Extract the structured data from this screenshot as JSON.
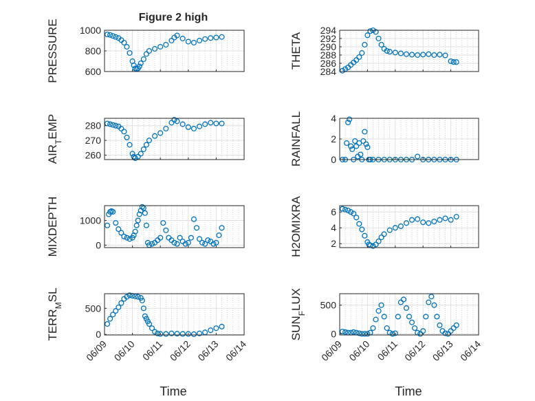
{
  "figure": {
    "title": "Figure 2 high",
    "marker_color": "#0072BD",
    "x_tick_labels": [
      "06/09",
      "06/10",
      "06/11",
      "06/12",
      "06/13",
      "06/14"
    ],
    "x_axis_label": "Time"
  },
  "chart_data": [
    {
      "type": "scatter",
      "ylabel": "PRESSURE",
      "x_range": [
        "06/09",
        "06/14"
      ],
      "ylim": [
        600,
        1000
      ],
      "yticks": [
        600,
        800,
        1000
      ],
      "ytick_labels": [
        "600",
        "800",
        "1000"
      ],
      "grid": true,
      "x": [
        0.1,
        0.2,
        0.3,
        0.4,
        0.5,
        0.6,
        0.7,
        0.8,
        0.9,
        1.0,
        1.05,
        1.1,
        1.15,
        1.2,
        1.25,
        1.3,
        1.4,
        1.5,
        1.6,
        1.8,
        2.0,
        2.2,
        2.4,
        2.5,
        2.6,
        2.8,
        3.0,
        3.2,
        3.4,
        3.6,
        3.8,
        4.0,
        4.2
      ],
      "y": [
        960,
        955,
        945,
        935,
        925,
        905,
        880,
        840,
        780,
        700,
        660,
        630,
        625,
        630,
        650,
        680,
        720,
        770,
        800,
        820,
        840,
        860,
        900,
        930,
        950,
        920,
        890,
        880,
        900,
        915,
        925,
        930,
        935
      ]
    },
    {
      "type": "scatter",
      "ylabel": "THETA",
      "x_range": [
        "06/09",
        "06/14"
      ],
      "ylim": [
        284,
        294
      ],
      "yticks": [
        284,
        286,
        288,
        290,
        292,
        294
      ],
      "ytick_labels": [
        "284",
        "286",
        "288",
        "290",
        "292",
        "294"
      ],
      "grid": true,
      "x": [
        0.1,
        0.2,
        0.3,
        0.4,
        0.5,
        0.6,
        0.7,
        0.8,
        0.9,
        1.0,
        1.1,
        1.2,
        1.3,
        1.4,
        1.5,
        1.6,
        1.7,
        1.8,
        2.0,
        2.2,
        2.4,
        2.6,
        2.8,
        3.0,
        3.2,
        3.4,
        3.6,
        3.8,
        4.0,
        4.1,
        4.2
      ],
      "y": [
        284.2,
        284.6,
        285,
        285.6,
        286.2,
        286.8,
        287.5,
        288.5,
        290.5,
        292.8,
        293.8,
        294,
        293.6,
        292,
        290.5,
        289.5,
        289,
        288.8,
        288.6,
        288.4,
        288.2,
        288.1,
        288,
        288.1,
        288.2,
        288,
        288.1,
        287.9,
        286.5,
        286.3,
        286.3
      ]
    },
    {
      "type": "scatter",
      "ylabel": "AIR_TEMP",
      "x_range": [
        "06/09",
        "06/14"
      ],
      "ylim": [
        257,
        285
      ],
      "yticks": [
        260,
        270,
        280
      ],
      "ytick_labels": [
        "260",
        "270",
        "280"
      ],
      "grid": true,
      "x": [
        0.1,
        0.2,
        0.3,
        0.4,
        0.5,
        0.6,
        0.7,
        0.8,
        0.9,
        1.0,
        1.05,
        1.1,
        1.2,
        1.3,
        1.4,
        1.5,
        1.6,
        1.8,
        2.0,
        2.2,
        2.4,
        2.5,
        2.6,
        2.8,
        3.0,
        3.2,
        3.4,
        3.6,
        3.8,
        4.0,
        4.2
      ],
      "y": [
        281.5,
        281,
        280.5,
        280,
        279.5,
        278,
        276,
        272,
        267,
        261,
        259,
        258,
        259,
        261,
        264,
        267,
        270,
        273,
        275,
        278,
        282,
        284,
        283,
        281,
        279,
        278,
        279.5,
        281,
        282,
        281.5,
        281.5
      ]
    },
    {
      "type": "scatter",
      "ylabel": "RAINFALL",
      "x_range": [
        "06/09",
        "06/14"
      ],
      "ylim": [
        0,
        4
      ],
      "yticks": [
        0,
        2,
        4
      ],
      "ytick_labels": [
        "0",
        "2",
        "4"
      ],
      "grid": true,
      "x": [
        0.1,
        0.2,
        0.25,
        0.3,
        0.35,
        0.4,
        0.45,
        0.5,
        0.55,
        0.6,
        0.65,
        0.7,
        0.75,
        0.8,
        0.85,
        0.9,
        0.95,
        1.0,
        1.05,
        1.1,
        1.2,
        1.4,
        1.6,
        1.8,
        2.0,
        2.2,
        2.4,
        2.6,
        2.8,
        3.0,
        3.2,
        3.4,
        3.6,
        3.8,
        4.0,
        4.2
      ],
      "y": [
        0,
        0,
        1.6,
        3.6,
        3.9,
        1.3,
        1,
        0,
        1.8,
        1.3,
        0.3,
        1.6,
        0.5,
        0,
        1.8,
        2.7,
        1.5,
        1.2,
        0,
        0,
        0,
        0,
        0,
        0,
        0,
        0,
        0,
        0,
        0.3,
        0,
        0,
        0,
        0,
        0,
        0,
        0
      ]
    },
    {
      "type": "scatter",
      "ylabel": "MIXDEPTH",
      "x_range": [
        "06/09",
        "06/14"
      ],
      "ylim": [
        -100,
        1600
      ],
      "yticks": [
        0,
        1000
      ],
      "ytick_labels": [
        "0",
        "1000"
      ],
      "grid": true,
      "x": [
        0.1,
        0.15,
        0.2,
        0.25,
        0.3,
        0.4,
        0.5,
        0.6,
        0.7,
        0.8,
        0.9,
        1.0,
        1.05,
        1.1,
        1.15,
        1.2,
        1.25,
        1.3,
        1.35,
        1.4,
        1.45,
        1.5,
        1.55,
        1.6,
        1.7,
        1.8,
        1.9,
        2.0,
        2.1,
        2.2,
        2.3,
        2.4,
        2.5,
        2.6,
        2.7,
        2.8,
        2.9,
        3.0,
        3.1,
        3.2,
        3.3,
        3.4,
        3.5,
        3.6,
        3.7,
        3.8,
        3.9,
        4.0,
        4.1,
        4.2
      ],
      "y": [
        800,
        1250,
        1350,
        1380,
        1350,
        900,
        650,
        500,
        350,
        300,
        250,
        300,
        400,
        550,
        800,
        1000,
        1250,
        1400,
        1550,
        1500,
        1300,
        800,
        100,
        0,
        50,
        100,
        200,
        300,
        900,
        600,
        300,
        200,
        100,
        50,
        300,
        150,
        50,
        100,
        300,
        1050,
        700,
        250,
        100,
        50,
        200,
        150,
        50,
        100,
        400,
        700
      ]
    },
    {
      "type": "scatter",
      "ylabel": "H2OMIXRA",
      "x_range": [
        "06/09",
        "06/14"
      ],
      "ylim": [
        1.5,
        6.8
      ],
      "yticks": [
        2,
        4,
        6
      ],
      "ytick_labels": [
        "2",
        "4",
        "6"
      ],
      "grid": true,
      "x": [
        0.1,
        0.2,
        0.3,
        0.4,
        0.5,
        0.6,
        0.7,
        0.8,
        0.9,
        1.0,
        1.05,
        1.1,
        1.2,
        1.3,
        1.4,
        1.5,
        1.6,
        1.8,
        2.0,
        2.2,
        2.4,
        2.6,
        2.8,
        3.0,
        3.2,
        3.4,
        3.6,
        3.8,
        4.0,
        4.2
      ],
      "y": [
        6.4,
        6.3,
        6.2,
        6.0,
        5.8,
        5.3,
        4.5,
        3.8,
        3.0,
        2.2,
        1.9,
        1.8,
        1.7,
        1.9,
        2.3,
        2.8,
        3.2,
        3.7,
        4.0,
        4.2,
        4.6,
        5.0,
        5.1,
        4.7,
        4.6,
        4.8,
        5.0,
        5.2,
        5.0,
        5.4
      ]
    },
    {
      "type": "scatter",
      "ylabel": "TERR_MSL",
      "x_range": [
        "06/09",
        "06/14"
      ],
      "ylim": [
        -10,
        780
      ],
      "yticks": [
        0,
        500
      ],
      "ytick_labels": [
        "0",
        "500"
      ],
      "grid": true,
      "x": [
        0.1,
        0.2,
        0.3,
        0.4,
        0.5,
        0.6,
        0.7,
        0.8,
        0.9,
        1.0,
        1.1,
        1.2,
        1.3,
        1.35,
        1.4,
        1.45,
        1.5,
        1.55,
        1.6,
        1.7,
        1.8,
        1.9,
        2.0,
        2.2,
        2.4,
        2.6,
        2.8,
        3.0,
        3.2,
        3.4,
        3.6,
        3.8,
        4.0,
        4.2
      ],
      "y": [
        200,
        300,
        380,
        450,
        520,
        600,
        680,
        720,
        750,
        740,
        730,
        720,
        700,
        650,
        500,
        350,
        300,
        250,
        200,
        120,
        50,
        20,
        10,
        10,
        20,
        15,
        10,
        10,
        5,
        20,
        40,
        80,
        120,
        150
      ]
    },
    {
      "type": "scatter",
      "ylabel": "SUN_FLUX",
      "x_range": [
        "06/09",
        "06/14"
      ],
      "ylim": [
        -20,
        700
      ],
      "yticks": [
        0,
        500
      ],
      "ytick_labels": [
        "0",
        "500"
      ],
      "grid": true,
      "x": [
        0.1,
        0.2,
        0.3,
        0.4,
        0.5,
        0.6,
        0.7,
        0.8,
        0.9,
        1.0,
        1.1,
        1.2,
        1.3,
        1.4,
        1.5,
        1.6,
        1.7,
        1.8,
        1.9,
        2.0,
        2.1,
        2.2,
        2.3,
        2.4,
        2.5,
        2.6,
        2.7,
        2.8,
        2.9,
        3.0,
        3.1,
        3.2,
        3.3,
        3.4,
        3.5,
        3.6,
        3.7,
        3.8,
        3.9,
        4.0,
        4.1,
        4.2
      ],
      "y": [
        40,
        30,
        20,
        20,
        30,
        20,
        10,
        0,
        0,
        0,
        20,
        100,
        250,
        400,
        500,
        300,
        100,
        20,
        0,
        10,
        300,
        550,
        600,
        450,
        300,
        200,
        100,
        20,
        0,
        50,
        300,
        550,
        650,
        500,
        300,
        150,
        50,
        10,
        0,
        50,
        100,
        150
      ]
    }
  ]
}
